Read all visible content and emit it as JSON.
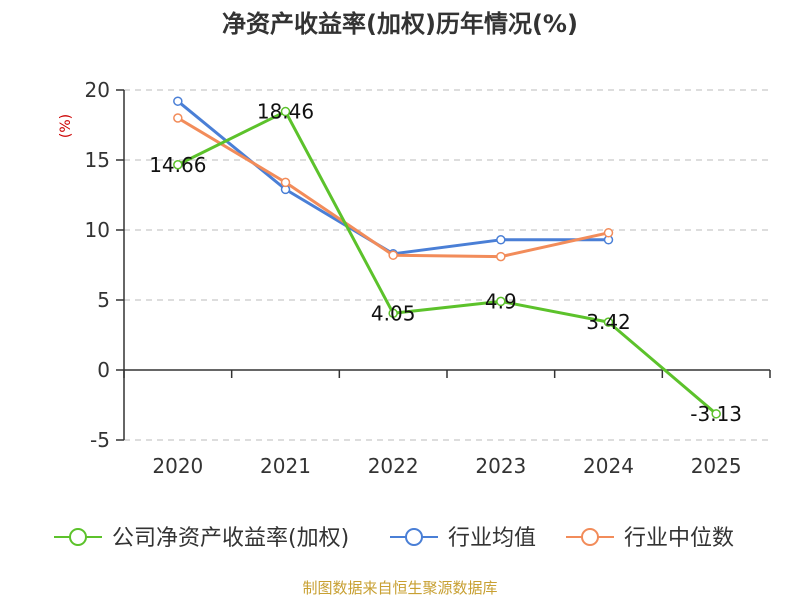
{
  "chart_data": {
    "type": "line",
    "title": "净资产收益率(加权)历年情况(%)",
    "ylabel": "(%)",
    "xlabel": "",
    "categories": [
      "2020",
      "2021",
      "2022",
      "2023",
      "2024",
      "2025"
    ],
    "ylim": [
      -5,
      20
    ],
    "yticks": [
      20,
      15,
      10,
      5,
      0,
      -5
    ],
    "grid": true,
    "legend_position": "bottom",
    "series": [
      {
        "name": "公司净资产收益率(加权)",
        "color": "#5cc22b",
        "values": [
          14.66,
          18.46,
          4.05,
          4.9,
          3.42,
          -3.13
        ],
        "labels": [
          "14.66",
          "18.46",
          "4.05",
          "4.9",
          "3.42",
          "-3.13"
        ]
      },
      {
        "name": "行业均值",
        "color": "#4a7fd6",
        "values": [
          19.2,
          12.9,
          8.3,
          9.3,
          9.3,
          null
        ]
      },
      {
        "name": "行业中位数",
        "color": "#f28c5a",
        "values": [
          18.0,
          13.4,
          8.2,
          8.1,
          9.8,
          null
        ]
      }
    ]
  },
  "source": "制图数据来自恒生聚源数据库"
}
